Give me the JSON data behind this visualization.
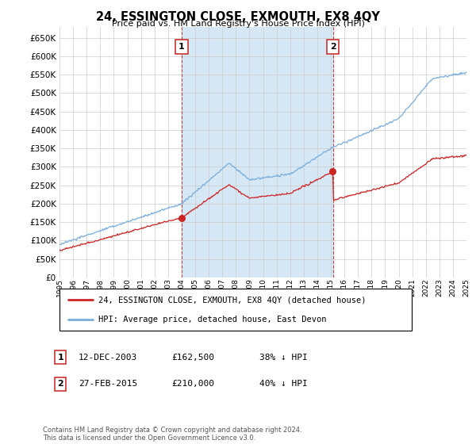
{
  "title": "24, ESSINGTON CLOSE, EXMOUTH, EX8 4QY",
  "subtitle": "Price paid vs. HM Land Registry's House Price Index (HPI)",
  "ylim": [
    0,
    680000
  ],
  "yticks": [
    0,
    50000,
    100000,
    150000,
    200000,
    250000,
    300000,
    350000,
    400000,
    450000,
    500000,
    550000,
    600000,
    650000
  ],
  "hpi_color": "#7aaddc",
  "hpi_fill_color": "#d6e8f5",
  "price_color": "#cc2222",
  "vline_color": "#cc3333",
  "grid_color": "#cccccc",
  "bg_color": "#ffffff",
  "transaction1": {
    "date": "12-DEC-2003",
    "price": 162500,
    "hpi_diff": "38% ↓ HPI",
    "label": "1",
    "x_year": 2004.0
  },
  "transaction2": {
    "date": "27-FEB-2015",
    "price": 210000,
    "hpi_diff": "40% ↓ HPI",
    "label": "2",
    "x_year": 2015.16
  },
  "legend_line1": "24, ESSINGTON CLOSE, EXMOUTH, EX8 4QY (detached house)",
  "legend_line2": "HPI: Average price, detached house, East Devon",
  "footer": "Contains HM Land Registry data © Crown copyright and database right 2024.\nThis data is licensed under the Open Government Licence v3.0.",
  "xmin": 1995,
  "xmax": 2025
}
